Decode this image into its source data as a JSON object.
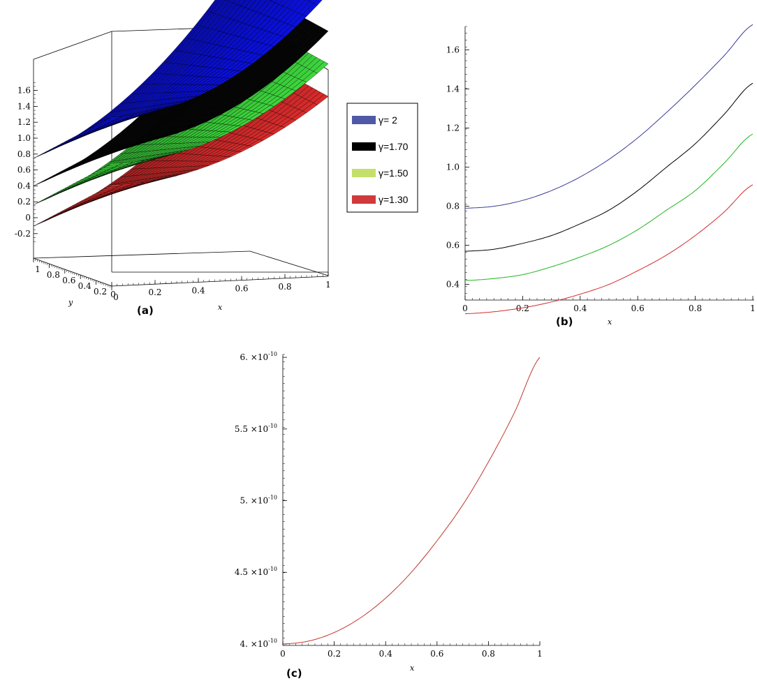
{
  "chart_data": [
    {
      "panel": "(a)",
      "type": "surface3d",
      "xlabel": "x",
      "ylabel": "y",
      "x_ticks": [
        "0",
        "0.2",
        "0.4",
        "0.6",
        "0.8",
        "1"
      ],
      "y_ticks": [
        "0",
        "0.2",
        "0.4",
        "0.6",
        "0.8",
        "1"
      ],
      "z_ticks": [
        "-0.2",
        "0",
        "0.2",
        "0.4",
        "0.6",
        "0.8",
        "1.0",
        "1.2",
        "1.4",
        "1.6"
      ],
      "zlim": [
        -0.3,
        1.75
      ],
      "legend": {
        "position": "right",
        "items": [
          {
            "label": "γ= 2",
            "color": "#5059a6"
          },
          {
            "label": "γ=1.70",
            "color": "#000000"
          },
          {
            "label": "γ=1.50",
            "color": "#c4e06a"
          },
          {
            "label": "γ=1.30",
            "color": "#d03a3a"
          }
        ]
      },
      "series": [
        {
          "name": "γ= 2",
          "color": "#0a10d8",
          "z_at_x0": 0.79,
          "z_at_x1": 1.73
        },
        {
          "name": "γ=1.70",
          "color": "#050505",
          "z_at_x0": 0.57,
          "z_at_x1": 1.43
        },
        {
          "name": "γ=1.50",
          "color": "#3bd03b",
          "z_at_x0": 0.42,
          "z_at_x1": 1.17
        },
        {
          "name": "γ=1.30",
          "color": "#d42a2a",
          "z_at_x0": 0.25,
          "z_at_x1": 0.91
        }
      ]
    },
    {
      "panel": "(b)",
      "type": "line",
      "xlabel": "x",
      "ylabel": "",
      "xlim": [
        0,
        1
      ],
      "ylim": [
        0.32,
        1.72
      ],
      "x_ticks": [
        "0",
        "0.2",
        "0.4",
        "0.6",
        "0.8",
        "1"
      ],
      "y_ticks": [
        "0.4",
        "0.6",
        "0.8",
        "1.0",
        "1.2",
        "1.4",
        "1.6"
      ],
      "x": [
        0,
        0.1,
        0.2,
        0.3,
        0.4,
        0.5,
        0.6,
        0.7,
        0.8,
        0.9,
        1.0
      ],
      "series": [
        {
          "color": "#3b3b9a",
          "values": [
            0.79,
            0.8,
            0.83,
            0.88,
            0.95,
            1.04,
            1.15,
            1.28,
            1.42,
            1.57,
            1.73
          ]
        },
        {
          "color": "#000000",
          "values": [
            0.57,
            0.58,
            0.61,
            0.65,
            0.71,
            0.78,
            0.88,
            1.0,
            1.12,
            1.27,
            1.43
          ]
        },
        {
          "color": "#1fb51f",
          "values": [
            0.42,
            0.43,
            0.45,
            0.49,
            0.54,
            0.6,
            0.68,
            0.78,
            0.88,
            1.02,
            1.17
          ]
        },
        {
          "color": "#d42a2a",
          "values": [
            0.25,
            0.26,
            0.28,
            0.31,
            0.35,
            0.4,
            0.47,
            0.55,
            0.65,
            0.77,
            0.91
          ]
        }
      ]
    },
    {
      "panel": "(c)",
      "type": "line",
      "xlabel": "x",
      "ylabel": "",
      "xlim": [
        0,
        1
      ],
      "ylim": [
        3.99,
        6.02
      ],
      "y_scale_note": "values in units of 10^-10",
      "x_ticks": [
        "0",
        "0.2",
        "0.4",
        "0.6",
        "0.8",
        "1"
      ],
      "y_ticks": [
        {
          "mant": "4. ×10",
          "exp": "-10",
          "value": 4.0
        },
        {
          "mant": "4.5 ×10",
          "exp": "-10",
          "value": 4.5
        },
        {
          "mant": "5. ×10",
          "exp": "-10",
          "value": 5.0
        },
        {
          "mant": "5.5 ×10",
          "exp": "-10",
          "value": 5.5
        },
        {
          "mant": "6. ×10",
          "exp": "-10",
          "value": 6.0
        }
      ],
      "x": [
        0,
        0.1,
        0.2,
        0.3,
        0.4,
        0.5,
        0.6,
        0.7,
        0.8,
        0.9,
        1.0
      ],
      "series": [
        {
          "color": "#c0392b",
          "values": [
            4.0,
            4.02,
            4.08,
            4.18,
            4.32,
            4.5,
            4.72,
            4.97,
            5.27,
            5.61,
            6.0
          ]
        }
      ]
    }
  ],
  "captions": {
    "a": "(a)",
    "b": "(b)",
    "c": "(c)"
  }
}
